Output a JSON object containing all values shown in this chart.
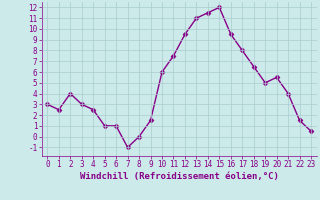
{
  "x": [
    0,
    1,
    2,
    3,
    4,
    5,
    6,
    7,
    8,
    9,
    10,
    11,
    12,
    13,
    14,
    15,
    16,
    17,
    18,
    19,
    20,
    21,
    22,
    23
  ],
  "y": [
    3,
    2.5,
    4,
    3,
    2.5,
    1,
    1,
    -1,
    0,
    1.5,
    6,
    7.5,
    9.5,
    11,
    11.5,
    12,
    9.5,
    8,
    6.5,
    5,
    5.5,
    4,
    1.5,
    0.5
  ],
  "line_color": "#880088",
  "marker": "D",
  "markersize": 2.5,
  "linewidth": 1.0,
  "bg_color": "#cceaea",
  "grid_color": "#aacccc",
  "xlabel": "Windchill (Refroidissement éolien,°C)",
  "xlabel_color": "#880088",
  "tick_color": "#880088",
  "ylim": [
    -1.8,
    12.5
  ],
  "yticks": [
    -1,
    0,
    1,
    2,
    3,
    4,
    5,
    6,
    7,
    8,
    9,
    10,
    11,
    12
  ],
  "xticks": [
    0,
    1,
    2,
    3,
    4,
    5,
    6,
    7,
    8,
    9,
    10,
    11,
    12,
    13,
    14,
    15,
    16,
    17,
    18,
    19,
    20,
    21,
    22,
    23
  ],
  "axis_label_fontsize": 6.5,
  "tick_fontsize": 5.5
}
